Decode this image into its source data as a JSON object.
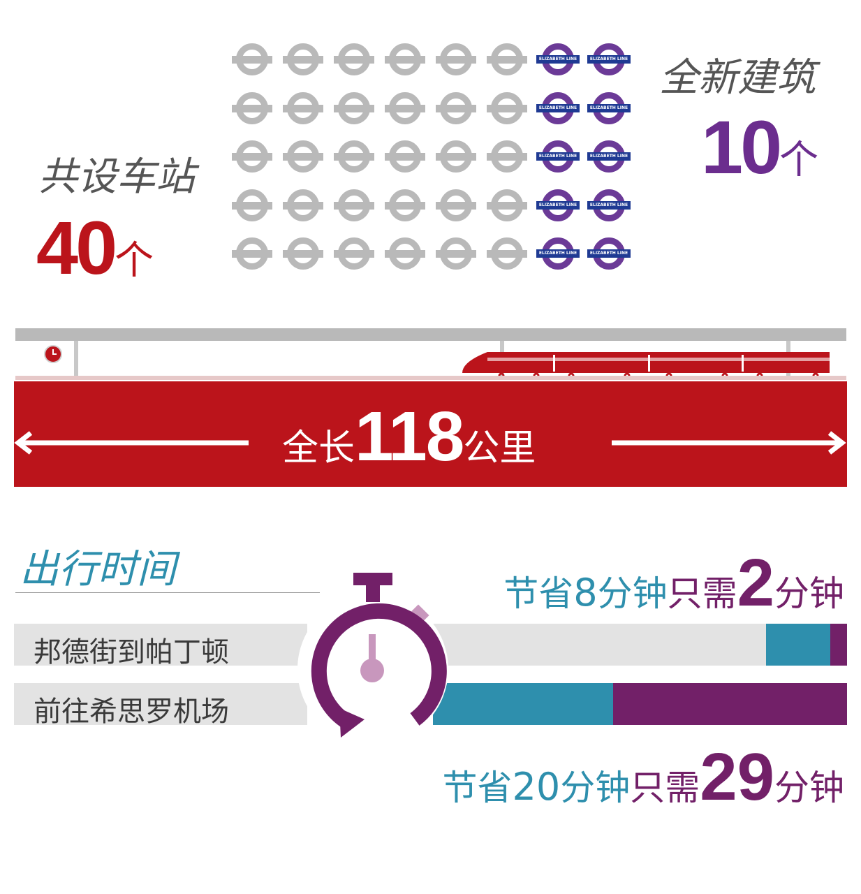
{
  "stations": {
    "total_label": "共设车站",
    "total_value": "40",
    "total_unit": "个",
    "new_label": "全新建筑",
    "new_value": "10",
    "new_unit": "个",
    "rows": 5,
    "cols": 8,
    "new_per_row": 2,
    "roundel_text": "ELIZABETH LINE",
    "colors": {
      "existing": "#b9b9b9",
      "new_ring": "#6b3a97",
      "new_bar": "#1f3a93",
      "total": "#bb141b",
      "new": "#6b2d8e"
    }
  },
  "line": {
    "length_prefix": "全长",
    "length_value": "118",
    "length_unit": "公里",
    "color": "#bb141b"
  },
  "travel": {
    "section_title": "出行时间",
    "routes": [
      {
        "name": "邦德街到帕丁顿",
        "saved_prefix": "节省",
        "saved_value": "8",
        "saved_unit": "分钟",
        "need_prefix": "只需",
        "need_value": "2",
        "need_unit": "分钟"
      },
      {
        "name": "前往希思罗机场",
        "saved_prefix": "节省",
        "saved_value": "20",
        "saved_unit": "分钟",
        "need_prefix": "只需",
        "need_value": "29",
        "need_unit": "分钟"
      }
    ],
    "colors": {
      "saved": "#2e8fad",
      "need": "#722068",
      "track": "#e3e3e3"
    }
  }
}
